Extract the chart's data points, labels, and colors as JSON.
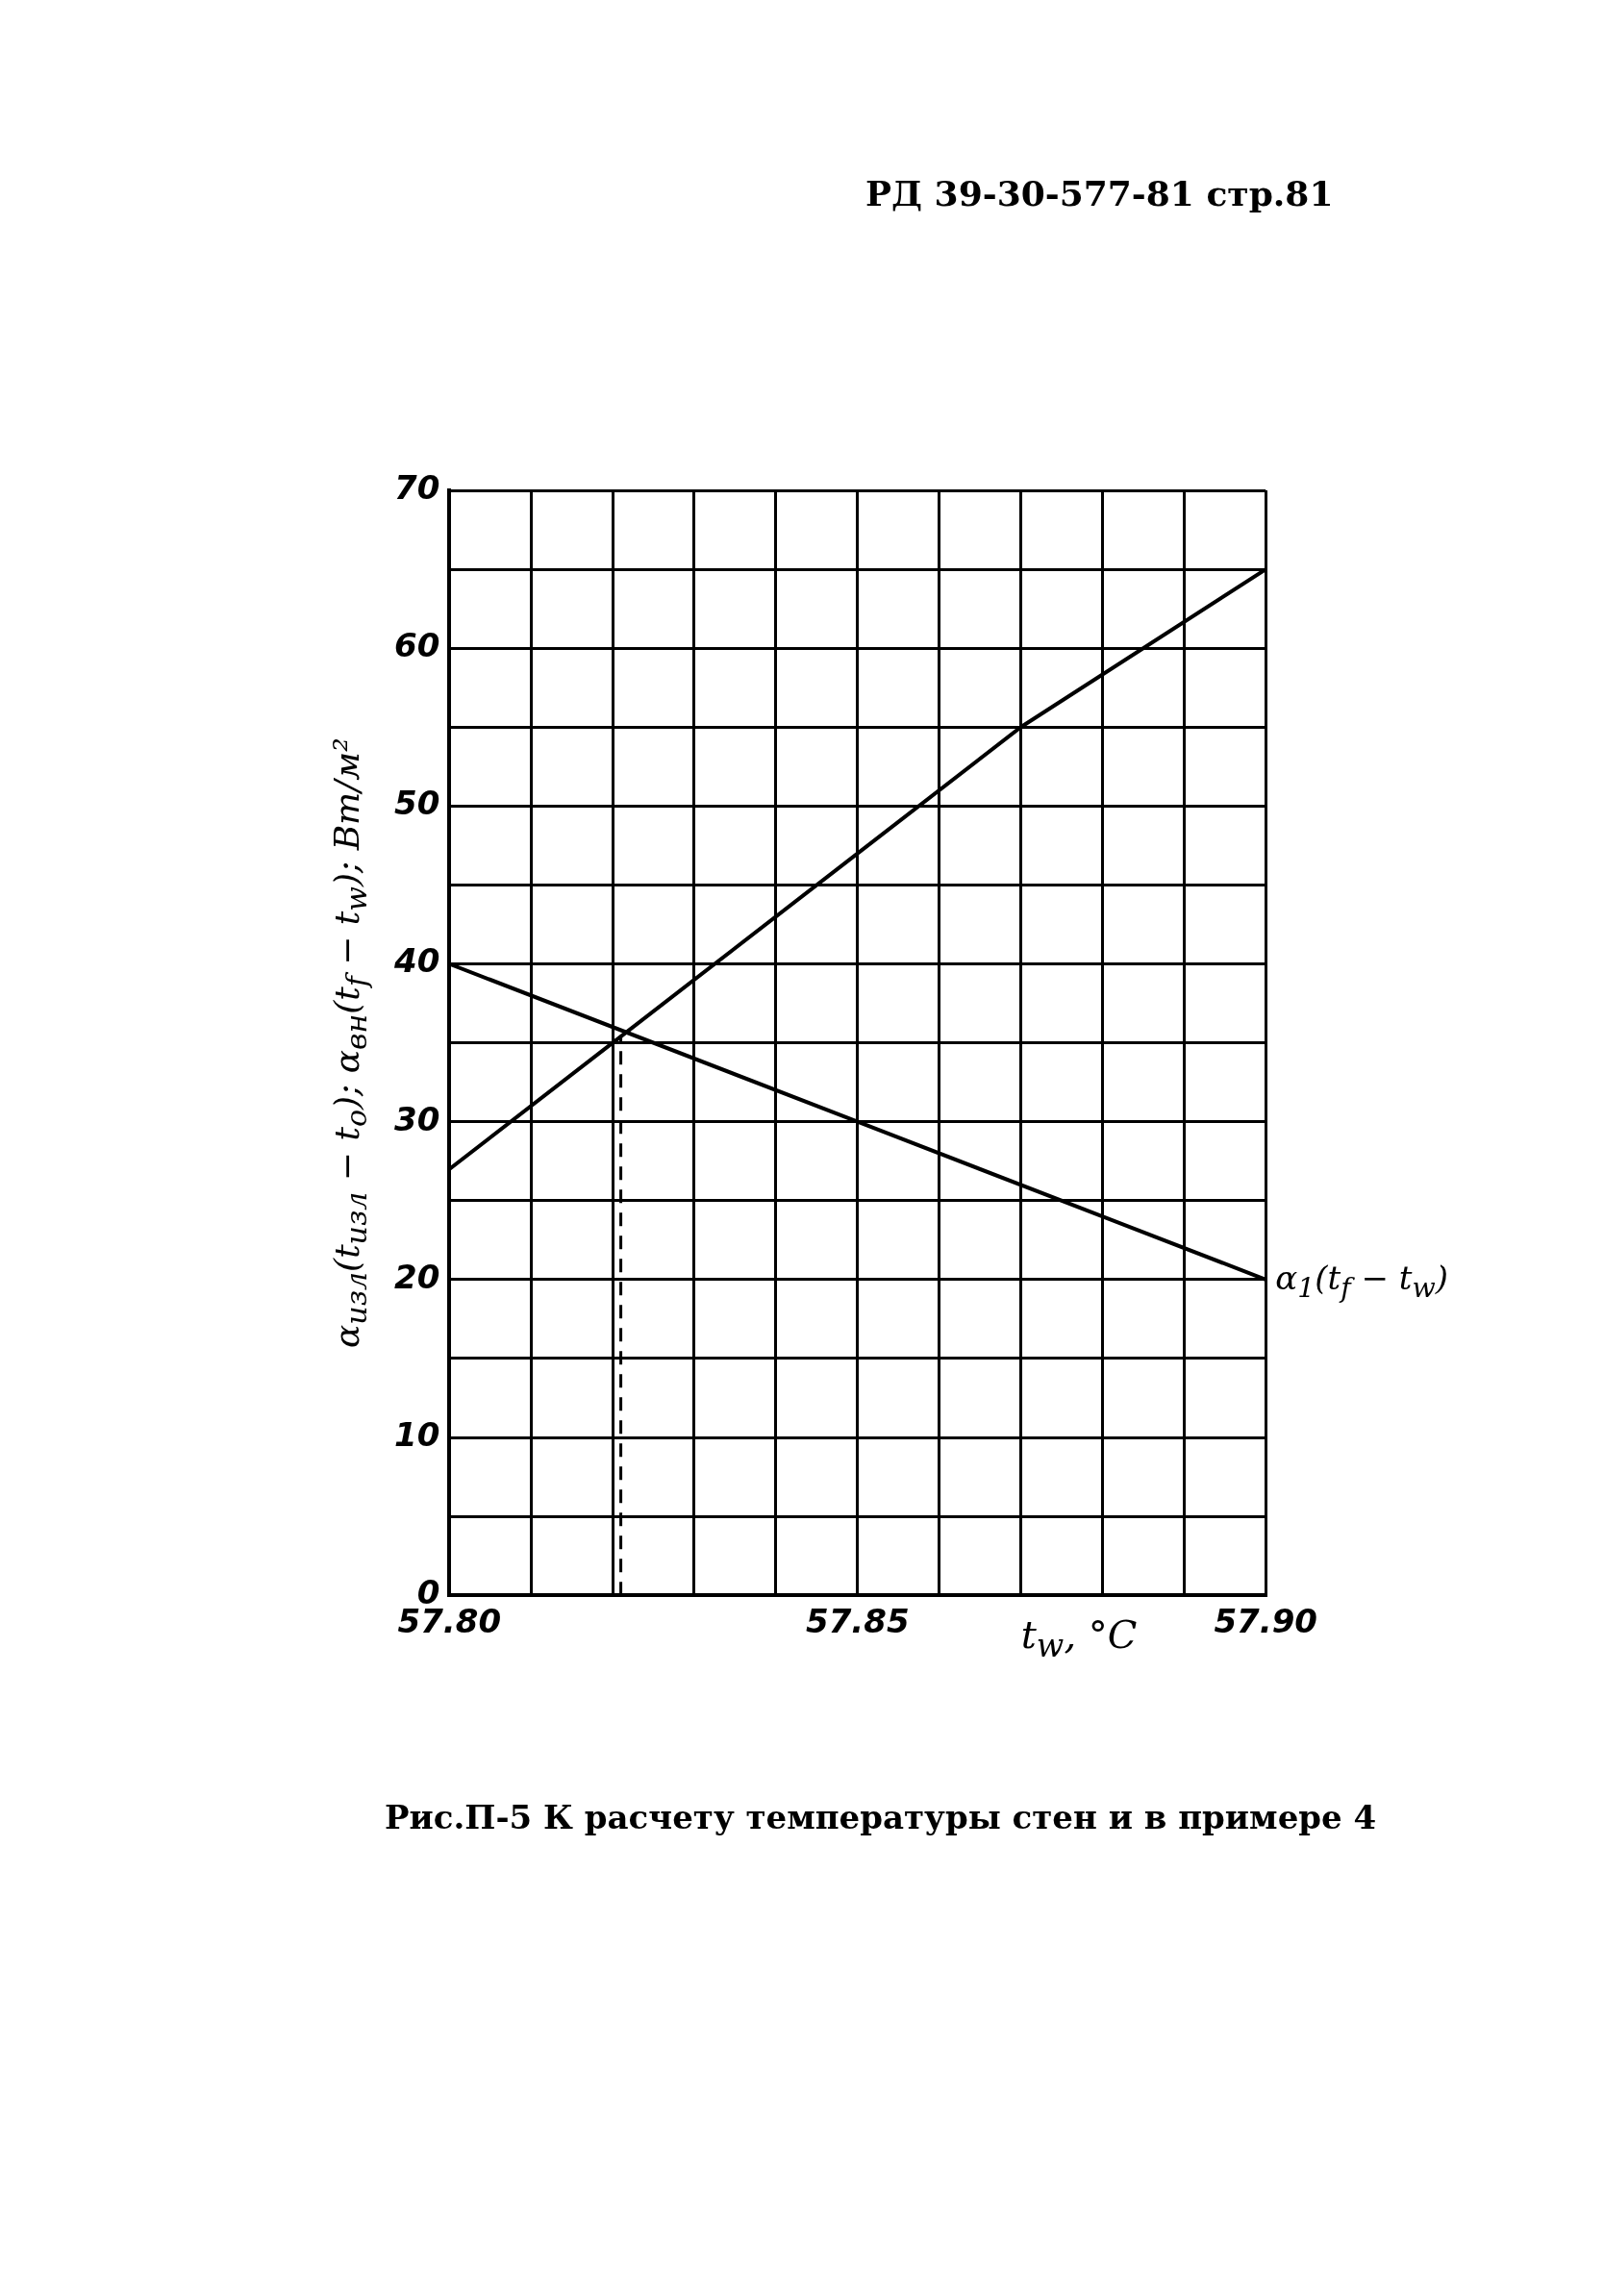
{
  "chart_data": {
    "type": "line",
    "title": "Рис.П-5 К расчету температуры стен и в примере 4",
    "annotations": [
      "РД 39-30-577-81 стр.81"
    ],
    "xlabel": "t$_{w}$, °C",
    "ylabel": "α$_{изл}$(t$_{изл}$ − t$_{o}$); α$_{вн}$(t$_{f}$ − t$_{w}$); Вт/м²",
    "xlim": [
      57.8,
      57.9
    ],
    "xticks": [
      {
        "value": 57.8,
        "label": "57.80"
      },
      {
        "value": 57.81,
        "label": null
      },
      {
        "value": 57.82,
        "label": null
      },
      {
        "value": 57.83,
        "label": null
      },
      {
        "value": 57.84,
        "label": null
      },
      {
        "value": 57.85,
        "label": "57.85"
      },
      {
        "value": 57.86,
        "label": null
      },
      {
        "value": 57.87,
        "label": null
      },
      {
        "value": 57.88,
        "label": null
      },
      {
        "value": 57.89,
        "label": null
      },
      {
        "value": 57.9,
        "label": "57.90"
      }
    ],
    "ylim": [
      0,
      70
    ],
    "yticks": [
      0,
      {
        "value": 5,
        "label": null
      },
      10,
      {
        "value": 15,
        "label": null
      },
      20,
      {
        "value": 25,
        "label": null
      },
      30,
      {
        "value": 35,
        "label": null
      },
      40,
      {
        "value": 45,
        "label": null
      },
      50,
      {
        "value": 55,
        "label": null
      },
      60,
      {
        "value": 65,
        "label": null
      },
      70
    ],
    "grid": true,
    "marker": "none",
    "line_style": "solid",
    "series": [
      {
        "name": "α$_{1}$(t$_{f}$ − t$_{w}$)",
        "color": "#000000",
        "x": [
          57.8,
          57.85,
          57.9
        ],
        "values": [
          40,
          30,
          20
        ]
      },
      {
        "color": "#000000",
        "x": [
          57.8,
          57.82,
          57.85,
          57.87,
          57.9
        ],
        "values": [
          27,
          35,
          47,
          55,
          65
        ]
      }
    ],
    "ref_lines": [
      {
        "axis": "x",
        "value": 57.821,
        "line_style": "dashed"
      }
    ]
  }
}
